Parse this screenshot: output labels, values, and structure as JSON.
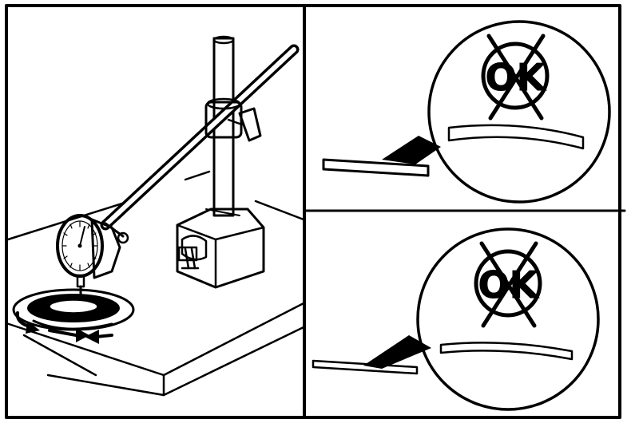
{
  "diagram": {
    "panels": [
      {
        "id": "setup",
        "content": "dial-indicator-on-magnetic-base"
      },
      {
        "id": "warped-top",
        "label": "OK",
        "marked": "crossed-out"
      },
      {
        "id": "warped-bottom",
        "label": "OK",
        "marked": "crossed-out"
      }
    ],
    "colors": {
      "ink": "#000000",
      "paper": "#ffffff"
    }
  }
}
